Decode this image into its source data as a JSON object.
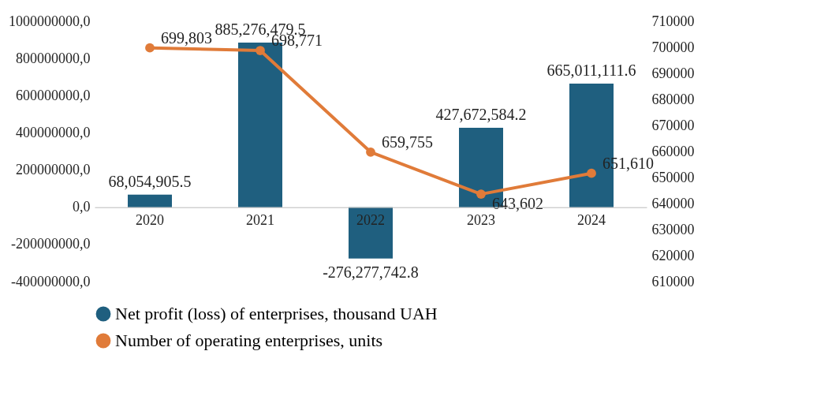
{
  "chart_data": {
    "type": "bar",
    "categories": [
      "2020",
      "2021",
      "2022",
      "2023",
      "2024"
    ],
    "series": [
      {
        "name": "Net profit (loss) of enterprises, thousand UAH",
        "color": "#1f5f7f",
        "values": [
          68054905.5,
          885276479.5,
          -276277742.8,
          427672584.2,
          665011111.6
        ],
        "value_labels": [
          "68,054,905.5",
          "885,276,479.5",
          "-276,277,742.8",
          "427,672,584.2",
          "665,011,111.6"
        ]
      },
      {
        "name": "Number of operating enterprises, units",
        "type": "line",
        "axis": "y2",
        "color": "#e07b39",
        "values": [
          699803,
          698771,
          659755,
          643602,
          651610
        ],
        "value_labels": [
          "699,803",
          "698,771",
          "659,755",
          "643,602",
          "651,610"
        ]
      }
    ],
    "ylim": [
      -400000000,
      1000000000
    ],
    "yticks": [
      {
        "value": -400000000,
        "label": "-400000000,0"
      },
      {
        "value": -200000000,
        "label": "-200000000,0"
      },
      {
        "value": 0,
        "label": "0,0"
      },
      {
        "value": 200000000,
        "label": "200000000,0"
      },
      {
        "value": 400000000,
        "label": "400000000,0"
      },
      {
        "value": 600000000,
        "label": "600000000,0"
      },
      {
        "value": 800000000,
        "label": "800000000,0"
      },
      {
        "value": 1000000000,
        "label": "1000000000,0"
      }
    ],
    "y2lim": [
      610000,
      710000
    ],
    "y2ticks": [
      610000,
      620000,
      630000,
      640000,
      650000,
      660000,
      670000,
      680000,
      690000,
      700000,
      710000
    ],
    "legend": "bottom",
    "marker": "circle"
  }
}
